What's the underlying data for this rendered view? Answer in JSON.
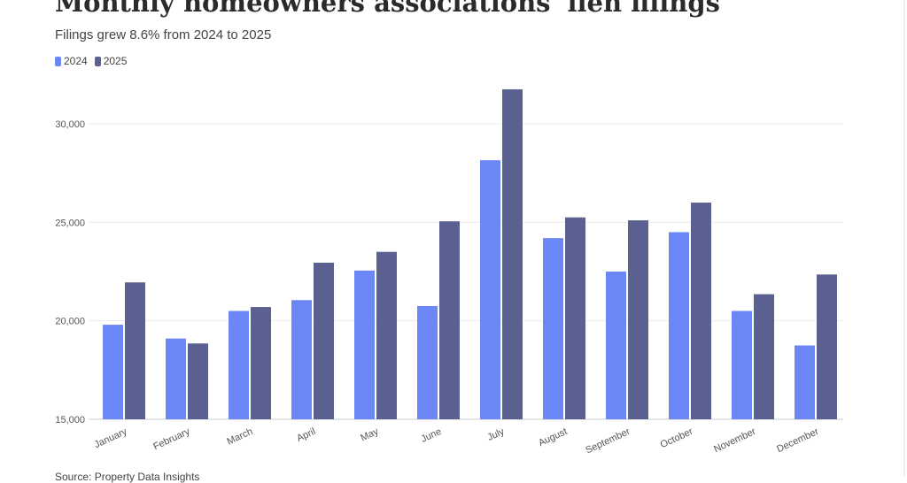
{
  "title": "Monthly homeowners associations' lien filings",
  "subtitle": "Filings grew 8.6% from 2024 to 2025",
  "source": "Source: Property Data Insights",
  "colors": {
    "2024": "#6b86f5",
    "2025": "#5a6190"
  },
  "chart_data": {
    "type": "bar",
    "title": "Monthly homeowners associations' lien filings",
    "subtitle": "Filings grew 8.6% from 2024 to 2025",
    "xlabel": "",
    "ylabel": "",
    "ylim": [
      15000,
      32000
    ],
    "yticks": [
      15000,
      20000,
      25000,
      30000
    ],
    "ytick_labels": [
      "15,000",
      "20,000",
      "25,000",
      "30,000"
    ],
    "grid": true,
    "legend_placement": "top-left",
    "categories": [
      "January",
      "February",
      "March",
      "April",
      "May",
      "June",
      "July",
      "August",
      "September",
      "October",
      "November",
      "December"
    ],
    "series": [
      {
        "name": "2024",
        "color": "#6b86f5",
        "values": [
          19800,
          19100,
          20500,
          21050,
          22550,
          20750,
          28150,
          24200,
          22500,
          24500,
          20500,
          18750
        ]
      },
      {
        "name": "2025",
        "color": "#5a6190",
        "values": [
          21950,
          18850,
          20700,
          22950,
          23500,
          25050,
          31750,
          25250,
          25100,
          26000,
          21350,
          22350
        ]
      }
    ]
  }
}
